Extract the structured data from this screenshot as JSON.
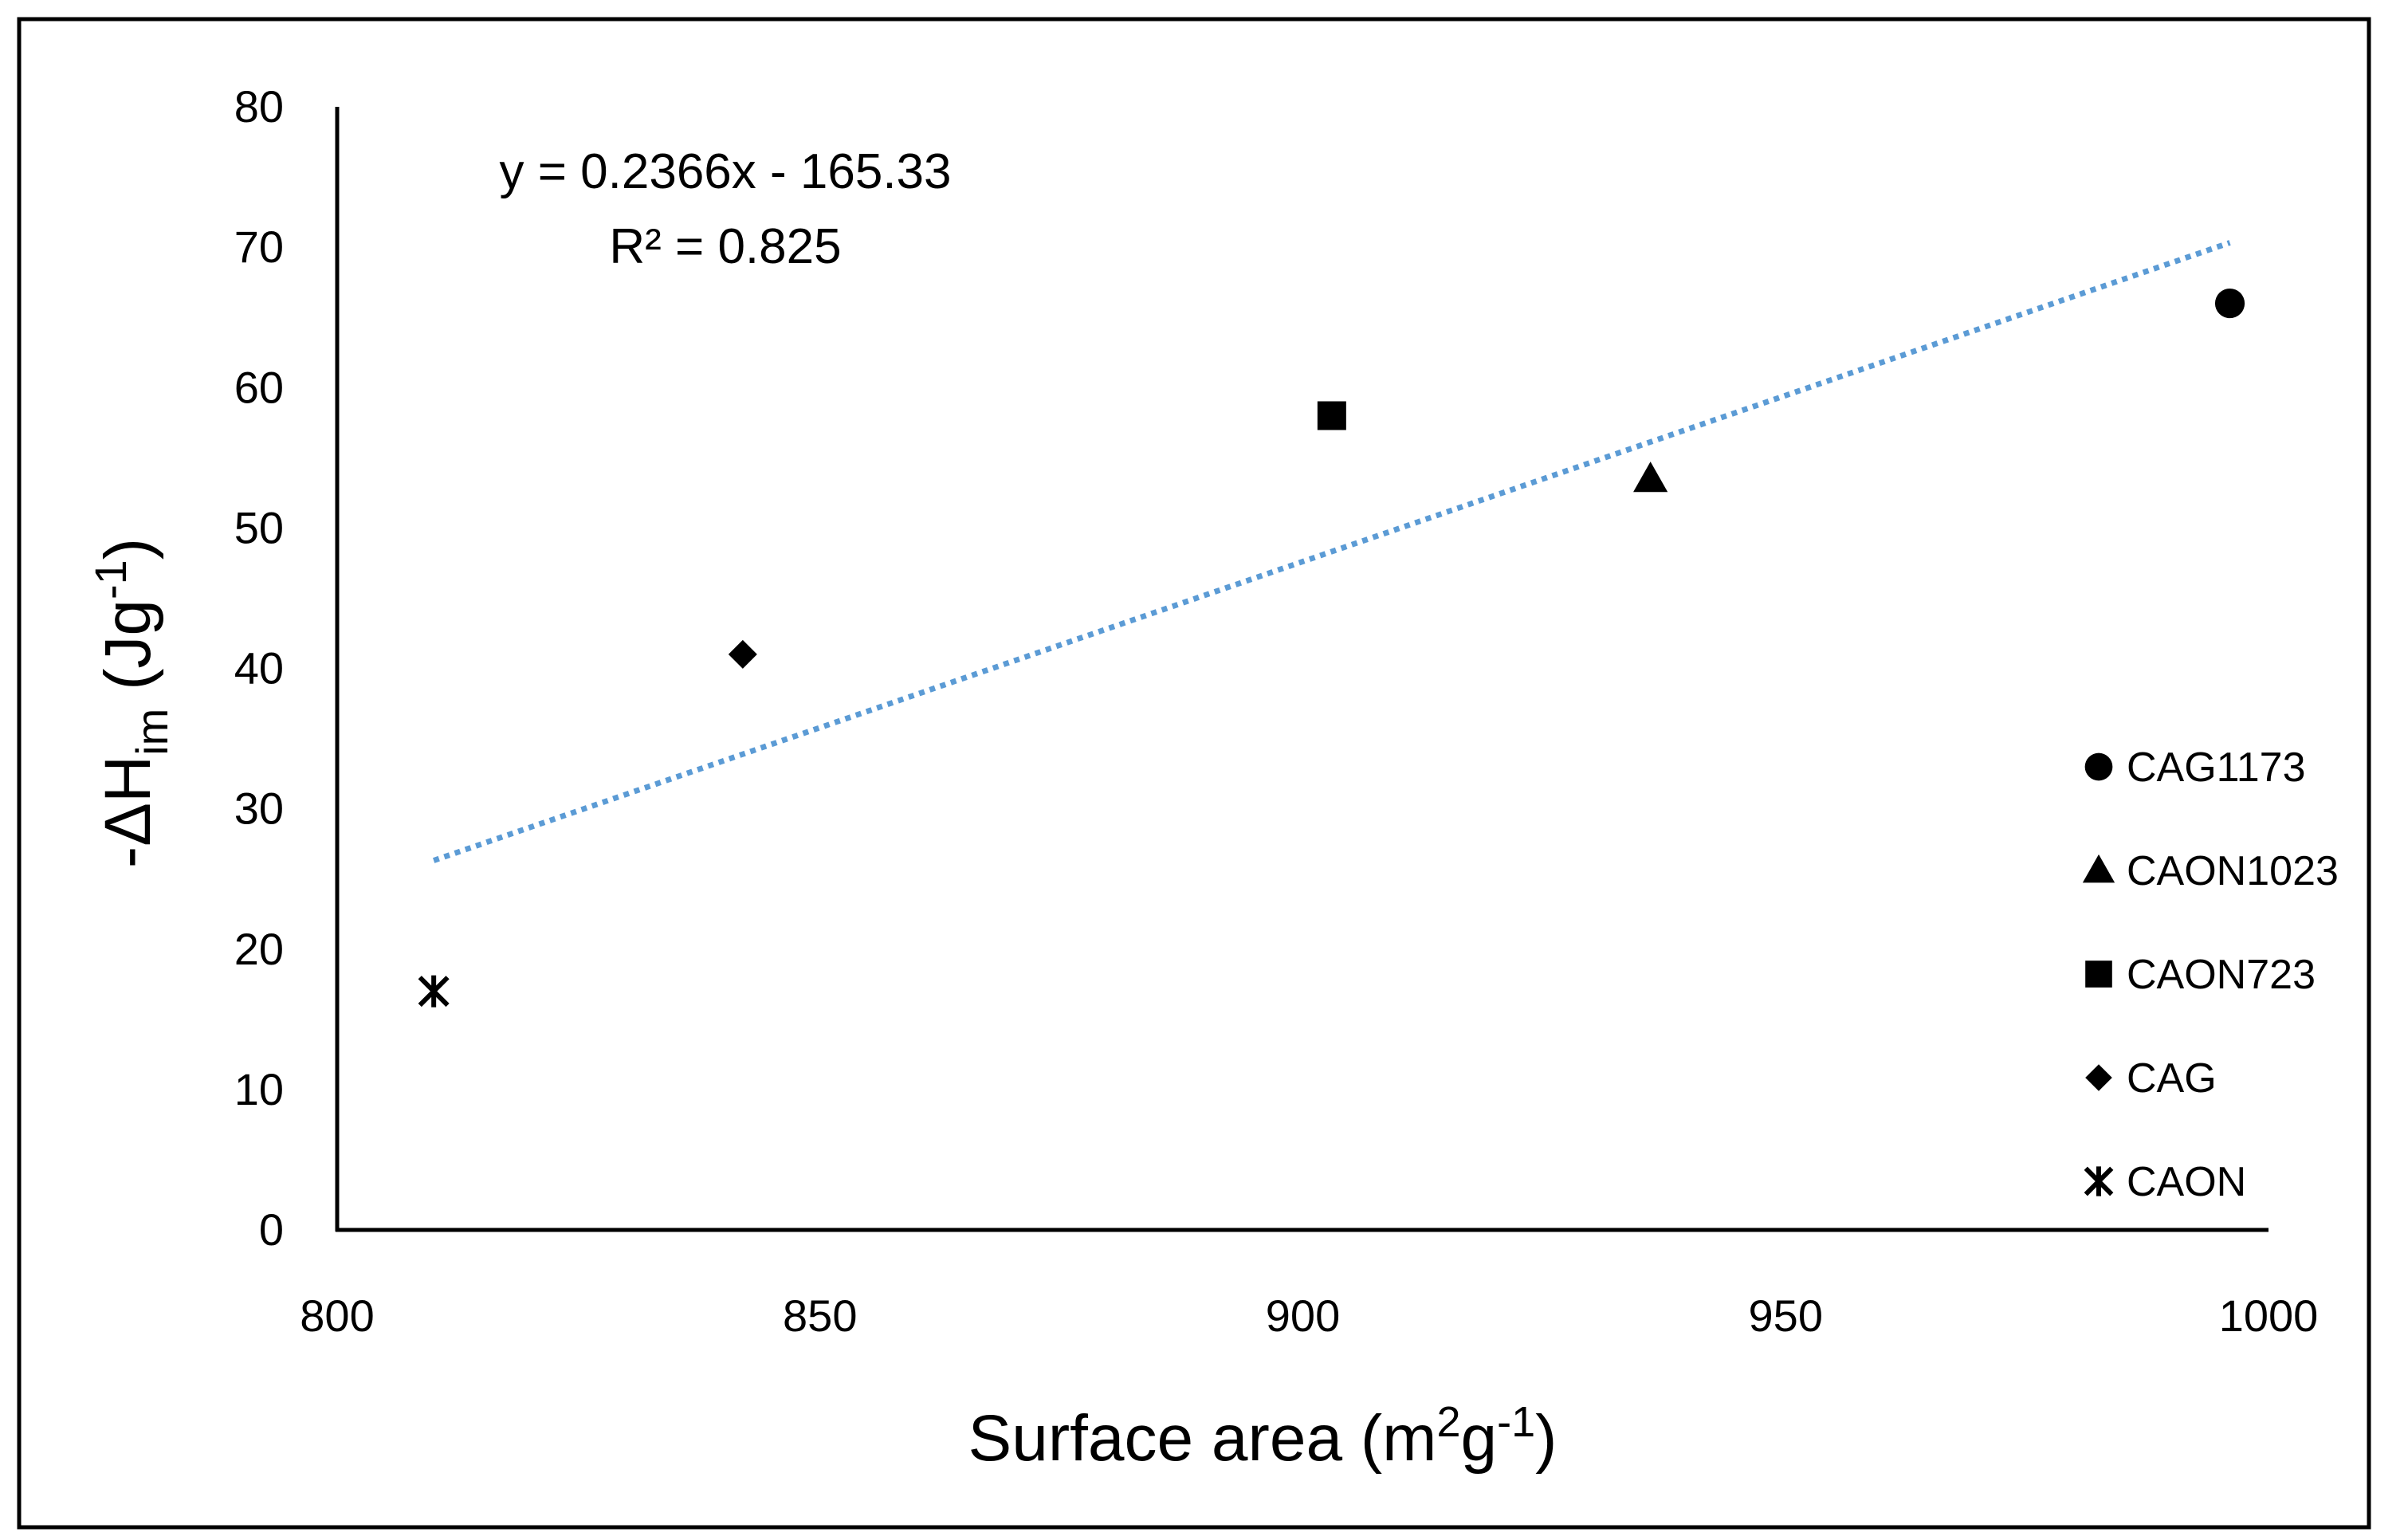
{
  "chart_data": {
    "type": "scatter",
    "xlabel": {
      "prefix": "Surface area  (m",
      "sup1": "2",
      "mid": "g",
      "sup2": "-1",
      "suffix": ")"
    },
    "ylabel": {
      "prefix": "-ΔH",
      "sub": "im",
      "mid": " (Jg",
      "sup": "-1",
      "suffix": ")"
    },
    "xlim": [
      800,
      1000
    ],
    "ylim": [
      0,
      80
    ],
    "x_ticks": [
      "800",
      "850",
      "900",
      "950",
      "1000"
    ],
    "y_ticks": [
      "0",
      "10",
      "20",
      "30",
      "40",
      "50",
      "60",
      "70",
      "80"
    ],
    "series": [
      {
        "name": "CAG1173",
        "marker": "circle",
        "x": 996,
        "y": 66
      },
      {
        "name": "CAON1023",
        "marker": "triangle",
        "x": 936,
        "y": 53.5
      },
      {
        "name": "CAON723",
        "marker": "square",
        "x": 903,
        "y": 58
      },
      {
        "name": "CAG",
        "marker": "diamond",
        "x": 842,
        "y": 41
      },
      {
        "name": "CAON",
        "marker": "asterisk",
        "x": 810,
        "y": 17
      }
    ],
    "trendline": {
      "type": "linear",
      "slope": 0.2366,
      "intercept": -165.33,
      "x_range": [
        810,
        996
      ],
      "style": "dotted",
      "color": "#5b9bd5",
      "equation": "y = 0.2366x - 165.33",
      "r_squared": "R² = 0.825"
    },
    "legend_position": "right"
  }
}
